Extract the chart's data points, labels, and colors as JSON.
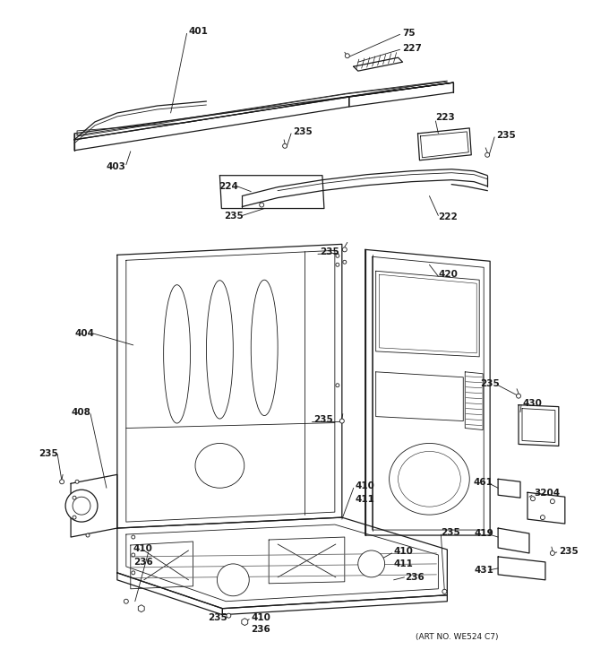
{
  "art_no": "(ART NO. WE524 C7)",
  "bg_color": "#ffffff",
  "lc": "#1a1a1a",
  "fs": 7.5
}
